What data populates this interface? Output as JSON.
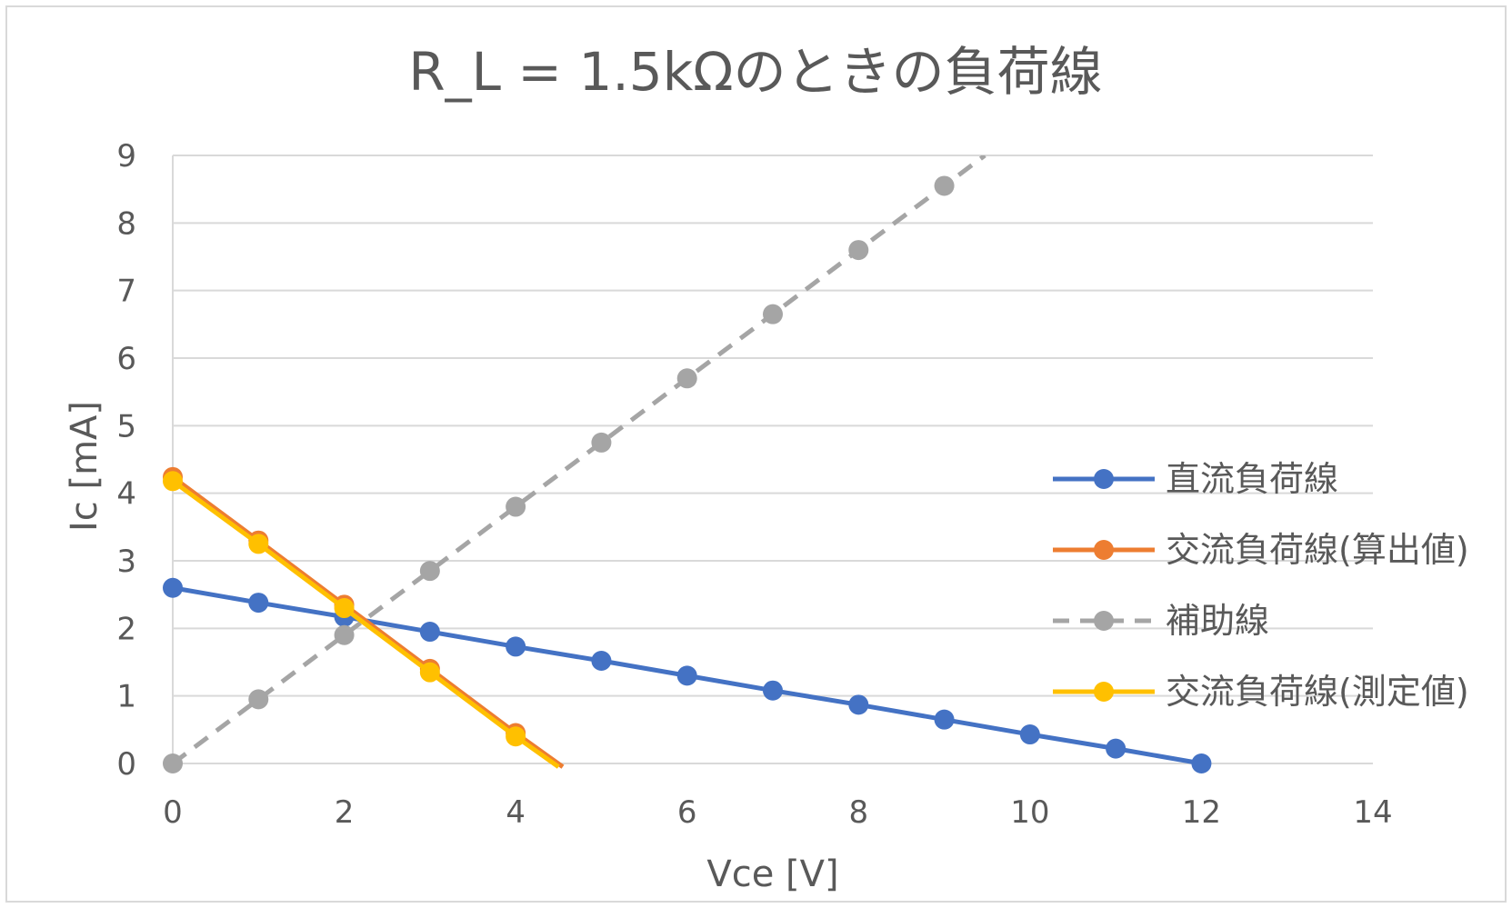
{
  "chart_data": {
    "type": "line",
    "title": "R_L = 1.5kΩのときの負荷線",
    "xlabel": "Vce [V]",
    "ylabel": "Ic [mA]",
    "xlim": [
      0,
      14
    ],
    "ylim": [
      0,
      9
    ],
    "x_ticks": [
      "0",
      "2",
      "4",
      "6",
      "8",
      "10",
      "12",
      "14"
    ],
    "y_ticks": [
      "0",
      "1",
      "2",
      "3",
      "4",
      "5",
      "6",
      "7",
      "8",
      "9"
    ],
    "grid": "horizontal",
    "legend_position": "right",
    "series": [
      {
        "name": "直流負荷線",
        "color": "#4472c4",
        "dash": false,
        "x": [
          0,
          1,
          2,
          3,
          4,
          5,
          6,
          7,
          8,
          9,
          10,
          11,
          12
        ],
        "y": [
          2.6,
          2.38,
          2.17,
          1.95,
          1.73,
          1.52,
          1.3,
          1.08,
          0.87,
          0.65,
          0.43,
          0.22,
          0.0
        ]
      },
      {
        "name": "交流負荷線(算出値)",
        "color": "#ed7d31",
        "dash": false,
        "x": [
          0,
          1,
          2,
          3,
          4,
          4.55
        ],
        "y": [
          4.24,
          3.3,
          2.35,
          1.4,
          0.45,
          -0.05
        ]
      },
      {
        "name": "補助線",
        "color": "#a5a5a5",
        "dash": true,
        "x": [
          0,
          1,
          2,
          3,
          4,
          5,
          6,
          7,
          8,
          9
        ],
        "y": [
          0,
          0.95,
          1.9,
          2.85,
          3.8,
          4.75,
          5.7,
          6.65,
          7.6,
          8.55
        ]
      },
      {
        "name": "交流負荷線(測定値)",
        "color": "#ffc000",
        "dash": false,
        "x": [
          0,
          1,
          2,
          3,
          4,
          4.5
        ],
        "y": [
          4.18,
          3.25,
          2.3,
          1.35,
          0.4,
          -0.05
        ]
      }
    ]
  }
}
